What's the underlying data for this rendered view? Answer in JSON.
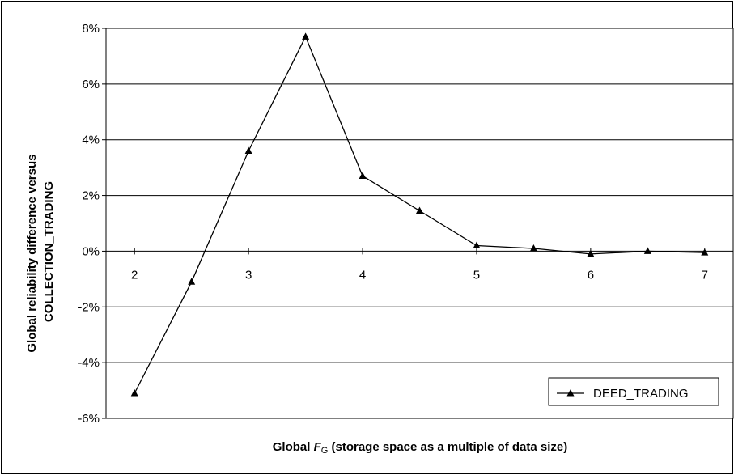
{
  "chart_data": {
    "type": "line",
    "xlabel": {
      "prefix": "Global ",
      "symbol": "F",
      "subscript": "G",
      "suffix": " (storage space as a multiple of data size)"
    },
    "ylabel": {
      "line1": "Global reliability difference versus",
      "line2": "COLLECTION_TRADING"
    },
    "x_ticks": [
      2,
      3,
      4,
      5,
      6,
      7
    ],
    "x_tick_labels": [
      "2",
      "3",
      "4",
      "5",
      "6",
      "7"
    ],
    "xlim": [
      1.75,
      7.25
    ],
    "ylim": [
      -6,
      8
    ],
    "y_ticks": [
      -6,
      -4,
      -2,
      0,
      2,
      4,
      6,
      8
    ],
    "y_tick_labels": [
      "-6%",
      "-4%",
      "-2%",
      "0%",
      "2%",
      "4%",
      "6%",
      "8%"
    ],
    "grid": "horizontal",
    "legend": "bottom-right",
    "series": [
      {
        "name": "DEED_TRADING",
        "marker": "triangle",
        "color": "#000000",
        "x": [
          2,
          2.5,
          3,
          3.5,
          4,
          4.5,
          5,
          5.5,
          6,
          6.5,
          7
        ],
        "y": [
          -5.1,
          -1.1,
          3.6,
          7.7,
          2.7,
          1.45,
          0.2,
          0.1,
          -0.1,
          0.0,
          -0.05
        ]
      }
    ]
  }
}
